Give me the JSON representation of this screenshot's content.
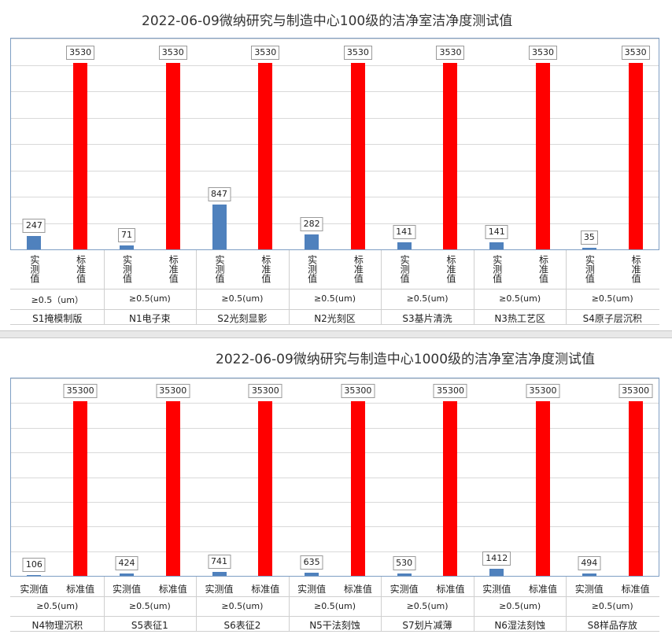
{
  "chart_data": [
    {
      "type": "bar",
      "title": "2022-06-09微纳研究与制造中心100级的洁净室洁净度测试值",
      "size_label_default": "≥0.5(um)",
      "categories": [
        {
          "name": "S1掩模制版",
          "size_label": "≥0.5（um）",
          "measured_label": "实测值",
          "standard_label": "标准值"
        },
        {
          "name": "N1电子束",
          "size_label": "≥0.5(um)",
          "measured_label": "实测值",
          "standard_label": "标准值"
        },
        {
          "name": "S2光刻显影",
          "size_label": "≥0.5(um)",
          "measured_label": "实测值",
          "standard_label": "标准值"
        },
        {
          "name": "N2光刻区",
          "size_label": "≥0.5(um)",
          "measured_label": "实测值",
          "standard_label": "标准值"
        },
        {
          "name": "S3基片清洗",
          "size_label": "≥0.5(um)",
          "measured_label": "实测值",
          "standard_label": "标准值"
        },
        {
          "name": "N3热工艺区",
          "size_label": "≥0.5(um)",
          "measured_label": "实测值",
          "standard_label": "标准值"
        },
        {
          "name": "S4原子层沉积",
          "size_label": "≥0.5(um)",
          "measured_label": "实测值",
          "standard_label": "标准值"
        }
      ],
      "series": [
        {
          "values": [
            247,
            71,
            847,
            282,
            141,
            141,
            35
          ]
        },
        {
          "values": [
            3530,
            3530,
            3530,
            3530,
            3530,
            3530,
            3530
          ]
        }
      ],
      "colors": {
        "measured": "#4f81bd",
        "standard": "#ff0000"
      },
      "ylim": [
        0,
        4000
      ],
      "grid": true,
      "label_orientation": "vertical"
    },
    {
      "type": "bar",
      "title": "2022-06-09微纳研究与制造中心1000级的洁净室洁净度测试值",
      "categories": [
        {
          "name": "N4物理沉积",
          "size_label": "≥0.5(um)",
          "measured_label": "实测值",
          "standard_label": "标准值"
        },
        {
          "name": "S5表征1",
          "size_label": "≥0.5(um)",
          "measured_label": "实测值",
          "standard_label": "标准值"
        },
        {
          "name": "S6表征2",
          "size_label": "≥0.5(um)",
          "measured_label": "实测值",
          "standard_label": "标准值"
        },
        {
          "name": "N5干法刻蚀",
          "size_label": "≥0.5(um)",
          "measured_label": "实测值",
          "standard_label": "标准值"
        },
        {
          "name": "S7划片减薄",
          "size_label": "≥0.5(um)",
          "measured_label": "实测值",
          "standard_label": "标准值"
        },
        {
          "name": "N6湿法刻蚀",
          "size_label": "≥0.5(um)",
          "measured_label": "实测值",
          "standard_label": "标准值"
        },
        {
          "name": "S8样品存放",
          "size_label": "≥0.5(um)",
          "measured_label": "实测值",
          "standard_label": "标准值"
        }
      ],
      "series": [
        {
          "values": [
            106,
            424,
            741,
            635,
            530,
            1412,
            494
          ]
        },
        {
          "values": [
            35300,
            35300,
            35300,
            35300,
            35300,
            35300,
            35300
          ]
        }
      ],
      "colors": {
        "measured": "#4f81bd",
        "standard": "#ff0000"
      },
      "ylim": [
        0,
        40000
      ],
      "grid": true,
      "label_orientation": "horizontal"
    }
  ]
}
